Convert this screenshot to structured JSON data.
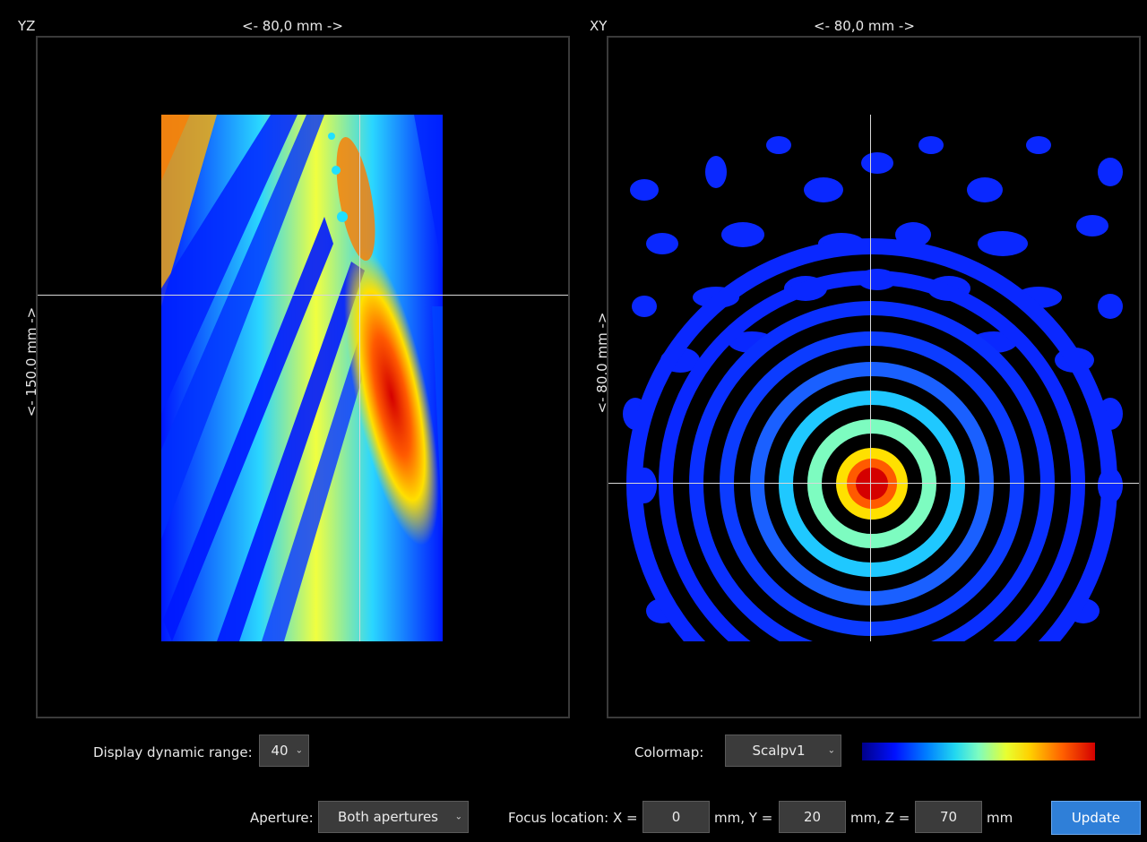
{
  "yz_panel": {
    "title": "YZ",
    "width_label": "<- 80,0 mm ->",
    "height_label": "<- 150,0 mm ->"
  },
  "xy_panel": {
    "title": "XY",
    "width_label": "<- 80,0 mm ->",
    "height_label": "<- 80,0 mm ->"
  },
  "controls": {
    "dynamic_range_label": "Display dynamic range:",
    "dynamic_range_value": "40",
    "colormap_label": "Colormap:",
    "colormap_value": "Scalpv1",
    "aperture_label": "Aperture:",
    "aperture_value": "Both apertures",
    "focus_label": "Focus location: X =",
    "focus_x": "0",
    "unit_x": "mm, Y =",
    "focus_y": "20",
    "unit_y": "mm, Z =",
    "focus_z": "70",
    "unit_z": "mm",
    "update_label": "Update"
  },
  "colors": {
    "accent": "#2f7fd8",
    "background": "#000000",
    "frame": "#3a3a3a"
  }
}
